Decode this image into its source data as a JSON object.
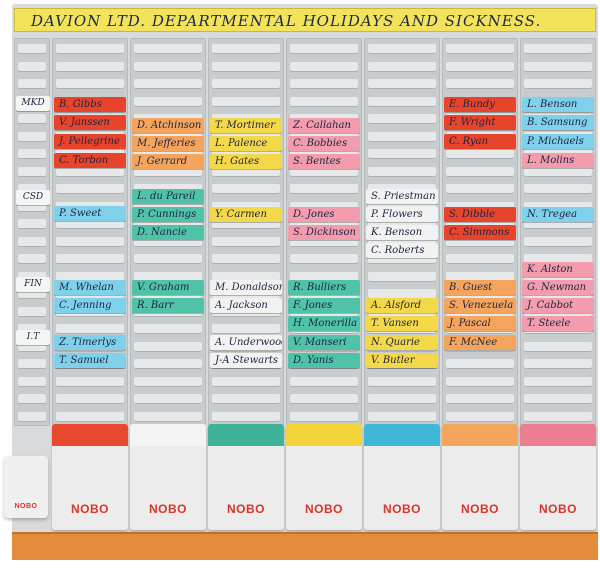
{
  "title": "DAVION LTD. DEPARTMENTAL HOLIDAYS AND SICKNESS.",
  "brand": "NOBO",
  "departments": [
    "MKD",
    "CSD",
    "FIN",
    "I.T"
  ],
  "tray_colors": [
    "#e8492e",
    "#f4f4f4",
    "#3fb39a",
    "#f3d33a",
    "#3fb7d9",
    "#f4a55c",
    "#ec7e92"
  ],
  "columns": [
    {
      "cards": [
        {
          "text": "B. Gibbs",
          "color": "#e8442c"
        },
        {
          "text": "V. Janssen",
          "color": "#e8442c"
        },
        {
          "text": "J. Pellegrine",
          "color": "#e8442c"
        },
        {
          "text": "C. Torbon",
          "color": "#e8442c"
        },
        {
          "text": "P. Sweet",
          "color": "#7fd0ea"
        },
        {
          "text": "M. Whelan",
          "color": "#7fd0ea"
        },
        {
          "text": "C. Jenning",
          "color": "#7fd0ea"
        },
        {
          "text": "Z. Timerlys",
          "color": "#7fd0ea"
        },
        {
          "text": "T. Samuel",
          "color": "#7fd0ea"
        }
      ]
    },
    {
      "cards": [
        {
          "text": "D. Atchinson",
          "color": "#f4a45c"
        },
        {
          "text": "M. Jefferies",
          "color": "#f4a45c"
        },
        {
          "text": "J. Gerrard",
          "color": "#f4a45c"
        },
        {
          "text": "L. du Pareil",
          "color": "#4fc2a8"
        },
        {
          "text": "P. Cunnings",
          "color": "#4fc2a8"
        },
        {
          "text": "D. Nancie",
          "color": "#4fc2a8"
        },
        {
          "text": "V. Graham",
          "color": "#4fc2a8"
        },
        {
          "text": "R. Barr",
          "color": "#4fc2a8"
        }
      ]
    },
    {
      "cards": [
        {
          "text": "T. Mortimer",
          "color": "#f3d84a"
        },
        {
          "text": "L. Palence",
          "color": "#f3d84a"
        },
        {
          "text": "H. Gates",
          "color": "#f3d84a"
        },
        {
          "text": "Y. Carmen",
          "color": "#f3d84a"
        },
        {
          "text": "M. Donaldson",
          "color": "#f2f2f2"
        },
        {
          "text": "A. Jackson",
          "color": "#f2f2f2"
        },
        {
          "text": "A. Underwood",
          "color": "#f2f2f2"
        },
        {
          "text": "J-A Stewarts",
          "color": "#f2f2f2"
        }
      ]
    },
    {
      "cards": [
        {
          "text": "Z. Callahan",
          "color": "#f29cae"
        },
        {
          "text": "C. Bobbies",
          "color": "#f29cae"
        },
        {
          "text": "S. Bentes",
          "color": "#f29cae"
        },
        {
          "text": "D. Jones",
          "color": "#f29cae"
        },
        {
          "text": "S. Dickinson",
          "color": "#f29cae"
        },
        {
          "text": "R. Bulliers",
          "color": "#4fc2a8"
        },
        {
          "text": "F. Jones",
          "color": "#4fc2a8"
        },
        {
          "text": "H. Monerilla",
          "color": "#4fc2a8"
        },
        {
          "text": "V. Manseri",
          "color": "#4fc2a8"
        },
        {
          "text": "D. Yanis",
          "color": "#4fc2a8"
        }
      ]
    },
    {
      "cards": [
        {
          "text": "S. Priestman",
          "color": "#f2f2f2"
        },
        {
          "text": "P. Flowers",
          "color": "#f2f2f2"
        },
        {
          "text": "K. Benson",
          "color": "#f2f2f2"
        },
        {
          "text": "C. Roberts",
          "color": "#f2f2f2"
        },
        {
          "text": "A. Alsford",
          "color": "#f3d84a"
        },
        {
          "text": "T. Vansen",
          "color": "#f3d84a"
        },
        {
          "text": "N. Quarie",
          "color": "#f3d84a"
        },
        {
          "text": "V. Butler",
          "color": "#f3d84a"
        }
      ]
    },
    {
      "cards": [
        {
          "text": "E. Bundy",
          "color": "#e8442c"
        },
        {
          "text": "F. Wright",
          "color": "#e8442c"
        },
        {
          "text": "C. Ryan",
          "color": "#e8442c"
        },
        {
          "text": "S. Dibble",
          "color": "#e8442c"
        },
        {
          "text": "C. Simmons",
          "color": "#e8442c"
        },
        {
          "text": "B. Guest",
          "color": "#f4a45c"
        },
        {
          "text": "S. Venezuela",
          "color": "#f4a45c"
        },
        {
          "text": "J. Pascal",
          "color": "#f4a45c"
        },
        {
          "text": "F. McNee",
          "color": "#f4a45c"
        }
      ]
    },
    {
      "cards": [
        {
          "text": "L. Benson",
          "color": "#7fd0ea"
        },
        {
          "text": "B. Samsung",
          "color": "#7fd0ea"
        },
        {
          "text": "P. Michaels",
          "color": "#7fd0ea"
        },
        {
          "text": "L. Molins",
          "color": "#f29cae"
        },
        {
          "text": "N. Tregea",
          "color": "#7fd0ea"
        },
        {
          "text": "K. Alston",
          "color": "#f29cae"
        },
        {
          "text": "G. Newman",
          "color": "#f29cae"
        },
        {
          "text": "J. Cabbot",
          "color": "#f29cae"
        },
        {
          "text": "T. Steele",
          "color": "#f29cae"
        }
      ]
    }
  ]
}
